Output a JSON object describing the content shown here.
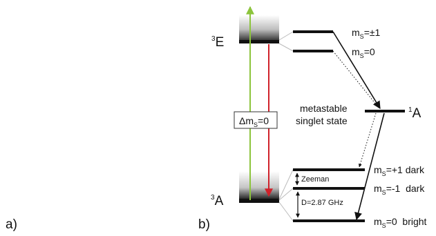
{
  "panel_labels": {
    "a": "a)",
    "b": "b)"
  },
  "terms": {
    "excited": {
      "sup": "3",
      "main": "E"
    },
    "ground": {
      "sup": "3",
      "main": "A"
    },
    "singlet": {
      "sup": "1",
      "main": "A"
    }
  },
  "excited_levels": [
    {
      "prefix": "m",
      "sub": "S",
      "value": "=±1"
    },
    {
      "prefix": "m",
      "sub": "S",
      "value": "=0"
    }
  ],
  "singlet_label": {
    "line1": "metastable",
    "line2": "singlet state"
  },
  "transition_label": {
    "delta": "Δm",
    "sub": "S",
    "value": "=0"
  },
  "ground_levels": [
    {
      "prefix": "m",
      "sub": "S",
      "value": "=+1 dark"
    },
    {
      "prefix": "m",
      "sub": "S",
      "value": "=-1  dark"
    },
    {
      "prefix": "m",
      "sub": "S",
      "value": "=0  bright"
    }
  ],
  "splittings": {
    "zeeman": "Zeeman",
    "zero_field": "D=2.87 GHz"
  },
  "colors": {
    "excitation_arrow": "#8cc43c",
    "emission_arrow": "#d0212a",
    "level": "#111111",
    "band_dark": "#222222"
  }
}
